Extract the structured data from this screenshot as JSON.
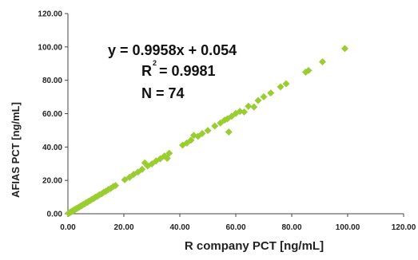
{
  "chart_data": {
    "type": "scatter",
    "title": "",
    "xlabel": "R company  PCT [ng/mL]",
    "ylabel": "AFIAS PCT [ng/mL]",
    "xlim": [
      0,
      120
    ],
    "ylim": [
      0,
      120
    ],
    "xticks": [
      "0.00",
      "20.00",
      "40.00",
      "60.00",
      "80.00",
      "100.00",
      "120.00"
    ],
    "yticks": [
      "0.00",
      "20.00",
      "40.00",
      "60.00",
      "80.00",
      "100.00",
      "120.00"
    ],
    "grid": false,
    "marker": "diamond",
    "marker_color": "#9ACD32",
    "annotations": {
      "equation": "y = 0.9958x + 0.054",
      "r_prefix": "R",
      "r_sup": "2",
      "r_value": "= 0.9981",
      "n": "N = 74"
    },
    "series": [
      {
        "x": [
          0.2,
          0.5,
          0.8,
          1.0,
          1.3,
          1.5,
          1.8,
          2.0,
          2.3,
          2.6,
          3.0,
          3.4,
          3.8,
          4.2,
          4.6,
          5.0,
          5.5,
          6.0,
          6.5,
          7.0,
          7.5,
          8.0,
          8.6,
          9.2,
          9.8,
          10.5,
          11.2,
          12.0,
          12.8,
          13.6,
          14.5,
          15.3,
          16.2,
          17.0,
          20.3,
          22.0,
          23.5,
          25.0,
          26.5,
          27.5,
          28.5,
          30.0,
          31.5,
          33.0,
          34.5,
          35.5,
          36.2,
          41.0,
          42.5,
          44.0,
          45.0,
          46.5,
          48.0,
          50.0,
          52.5,
          54.5,
          56.0,
          57.0,
          57.5,
          58.5,
          60.0,
          61.5,
          63.0,
          64.5,
          66.5,
          68.0,
          70.0,
          72.5,
          76.0,
          78.0,
          85.0,
          86.0,
          91.0,
          99.0
        ],
        "y": [
          0.3,
          0.4,
          0.9,
          1.1,
          1.2,
          1.6,
          1.7,
          2.1,
          2.4,
          2.5,
          3.1,
          3.3,
          3.9,
          4.1,
          4.7,
          4.9,
          5.6,
          5.9,
          6.6,
          6.9,
          7.6,
          7.9,
          8.7,
          9.1,
          9.9,
          10.4,
          11.3,
          11.9,
          12.9,
          13.5,
          14.6,
          15.2,
          16.3,
          16.9,
          20.4,
          21.8,
          23.6,
          24.9,
          26.6,
          30.5,
          28.6,
          29.9,
          31.6,
          32.9,
          34.6,
          33.2,
          36.3,
          41.1,
          42.4,
          44.1,
          47.0,
          46.4,
          48.1,
          49.9,
          52.6,
          54.4,
          56.1,
          56.9,
          49.0,
          58.4,
          60.1,
          61.4,
          61.0,
          64.4,
          64.0,
          67.9,
          70.1,
          72.4,
          76.1,
          77.9,
          84.9,
          85.9,
          91.1,
          99.0
        ]
      }
    ]
  }
}
